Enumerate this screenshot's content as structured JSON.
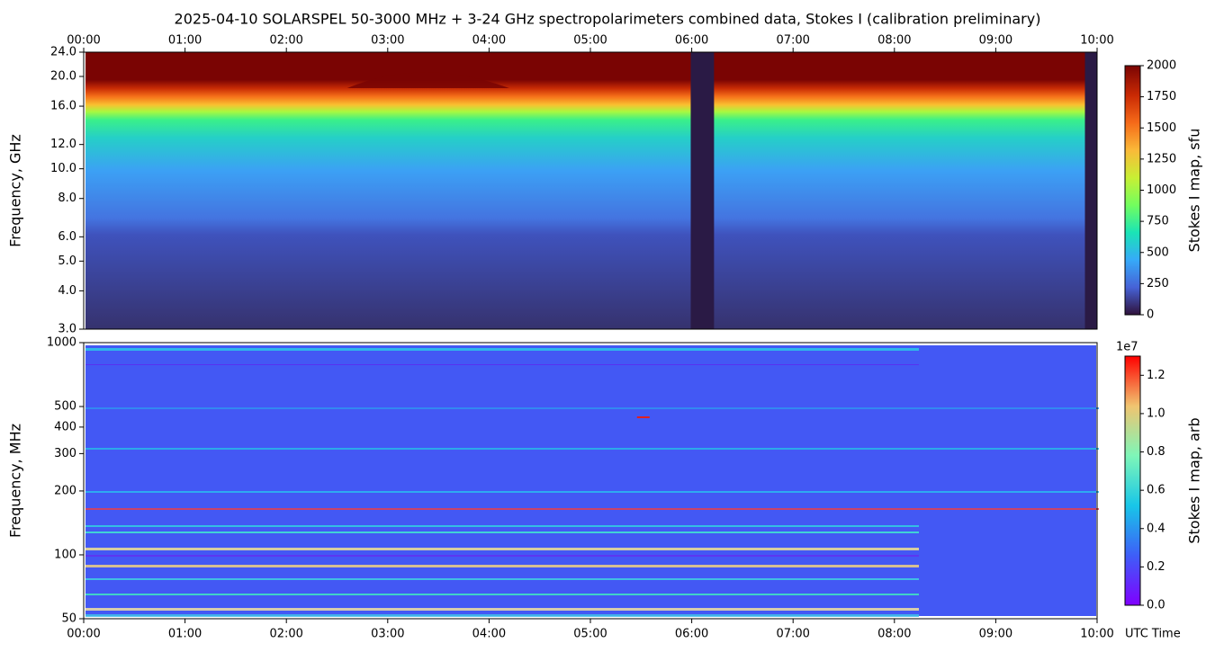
{
  "chart_data": [
    {
      "type": "spectrogram",
      "title": "2025-04-10  SOLARSPEL  50-3000 MHz  +  3-24 GHz  spectropolarimeters combined data,  Stokes I  (calibration preliminary)",
      "ylabel": "Frequency, GHz",
      "yscale": "log",
      "ylim": [
        3,
        24
      ],
      "yticks": [
        {
          "value": 3,
          "label": "3.0"
        },
        {
          "value": 4,
          "label": "4.0"
        },
        {
          "value": 5,
          "label": "5.0"
        },
        {
          "value": 6,
          "label": "6.0"
        },
        {
          "value": 8,
          "label": "8.0"
        },
        {
          "value": 10,
          "label": "10.0"
        },
        {
          "value": 12,
          "label": "12.0"
        },
        {
          "value": 16,
          "label": "16.0"
        },
        {
          "value": 20,
          "label": "20.0"
        },
        {
          "value": 24,
          "label": "24.0"
        }
      ],
      "xlim": [
        0,
        10
      ],
      "xticks": [
        {
          "value": 0,
          "label": "00:00"
        },
        {
          "value": 1,
          "label": "01:00"
        },
        {
          "value": 2,
          "label": "02:00"
        },
        {
          "value": 3,
          "label": "03:00"
        },
        {
          "value": 4,
          "label": "04:00"
        },
        {
          "value": 5,
          "label": "05:00"
        },
        {
          "value": 6,
          "label": "06:00"
        },
        {
          "value": 7,
          "label": "07:00"
        },
        {
          "value": 8,
          "label": "08:00"
        },
        {
          "value": 9,
          "label": "09:00"
        },
        {
          "value": 10,
          "label": "10:00"
        }
      ],
      "gaps": [
        [
          5.99,
          6.22
        ],
        [
          9.88,
          10
        ]
      ],
      "colormap": "turbo",
      "colorbar": {
        "label": "Stokes I map, sfu",
        "lim": [
          0,
          2000
        ],
        "ticks": [
          0,
          250,
          500,
          750,
          1000,
          1250,
          1500,
          1750,
          2000
        ]
      }
    },
    {
      "type": "spectrogram",
      "ylabel": "Frequency, MHz",
      "yscale": "log",
      "ylim": [
        50,
        1000
      ],
      "yticks": [
        50,
        100,
        200,
        300,
        400,
        500,
        1000
      ],
      "xlim": [
        0,
        10
      ],
      "xlabel": "UTC Time",
      "xticks": [
        {
          "value": 0,
          "label": "00:00"
        },
        {
          "value": 1,
          "label": "01:00"
        },
        {
          "value": 2,
          "label": "02:00"
        },
        {
          "value": 3,
          "label": "03:00"
        },
        {
          "value": 4,
          "label": "04:00"
        },
        {
          "value": 5,
          "label": "05:00"
        },
        {
          "value": 6,
          "label": "06:00"
        },
        {
          "value": 7,
          "label": "07:00"
        },
        {
          "value": 8,
          "label": "08:00"
        },
        {
          "value": 9,
          "label": "09:00"
        },
        {
          "value": 10,
          "label": "10:00"
        }
      ],
      "colormap": "rainbow",
      "colorbar": {
        "label": "Stokes I map, arb",
        "lim": [
          0,
          13000000
        ],
        "offset_label": "1e7",
        "ticks": [
          {
            "value": 0,
            "label": "0.0"
          },
          {
            "value": 2000000,
            "label": "0.2"
          },
          {
            "value": 4000000,
            "label": "0.4"
          },
          {
            "value": 6000000,
            "label": "0.6"
          },
          {
            "value": 8000000,
            "label": "0.8"
          },
          {
            "value": 10000000,
            "label": "1.0"
          },
          {
            "value": 12000000,
            "label": "1.2"
          }
        ]
      }
    }
  ]
}
